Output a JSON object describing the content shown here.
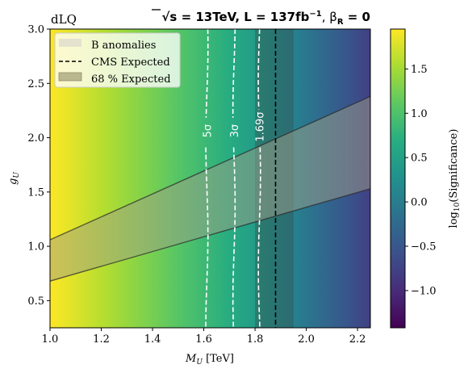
{
  "chart_data": {
    "type": "heatmap",
    "corner_label": "dLQ",
    "title": {
      "sqrt_s_prefix": "√",
      "sqrt_s_var": "s",
      "energy": " = 13TeV, L = 137fb",
      "lumi_exp": "−1",
      "sep": ", β",
      "beta_sub": "R",
      "beta_val": " = 0"
    },
    "xlabel": {
      "var": "M",
      "sub": "U",
      "unit": " [TeV]"
    },
    "ylabel": {
      "var": "g",
      "sub": "U"
    },
    "xlim": [
      1.0,
      2.25
    ],
    "ylim": [
      0.25,
      3.0
    ],
    "xticks": [
      1.0,
      1.2,
      1.4,
      1.6,
      1.8,
      2.0,
      2.2
    ],
    "xtick_labels": [
      "1.0",
      "1.2",
      "1.4",
      "1.6",
      "1.8",
      "2.0",
      "2.2"
    ],
    "yticks": [
      0.5,
      1.0,
      1.5,
      2.0,
      2.5,
      3.0
    ],
    "ytick_labels": [
      "0.5",
      "1.0",
      "1.5",
      "2.0",
      "2.5",
      "3.0"
    ],
    "colorbar": {
      "label_prefix": "log",
      "label_sub": "10",
      "label_suffix": "(Significance)",
      "range": [
        -1.42,
        1.95
      ],
      "ticks": [
        -1.0,
        -0.5,
        0.0,
        0.5,
        1.0,
        1.5
      ],
      "tick_labels": [
        "−1.0",
        "−0.5",
        "0.0",
        "0.5",
        "1.0",
        "1.5"
      ],
      "colormap": "viridis"
    },
    "heatmap_profile": {
      "x": [
        1.0,
        1.1,
        1.2,
        1.3,
        1.4,
        1.5,
        1.6,
        1.7,
        1.8,
        1.9,
        2.0,
        2.1,
        2.2,
        2.25
      ],
      "log10_significance": [
        1.95,
        1.78,
        1.6,
        1.42,
        1.25,
        1.06,
        0.87,
        0.67,
        0.44,
        0.2,
        -0.07,
        -0.35,
        -0.63,
        -0.78
      ]
    },
    "sigma_contours": [
      {
        "label": "5σ",
        "x": 1.612
      },
      {
        "label": "3σ",
        "x": 1.718
      },
      {
        "label": "1.69σ",
        "x": 1.817
      }
    ],
    "cms_expected_x": 1.88,
    "expected_band_68": [
      1.8,
      1.95
    ],
    "b_anomalies_band": {
      "x": [
        1.0,
        2.25
      ],
      "upper": [
        1.06,
        2.38
      ],
      "lower": [
        0.68,
        1.53
      ]
    },
    "legend": {
      "position": "upper-left",
      "entries": [
        {
          "label": "B anomalies",
          "style": "band-light"
        },
        {
          "label": "CMS Expected",
          "style": "dashed-line"
        },
        {
          "label": "68 % Expected",
          "style": "band-dark"
        }
      ]
    },
    "colors": {
      "b_anomaly_band": "#a09d88",
      "expected_band": "#3a3a3a",
      "contour": "#ffffff",
      "cms_line": "#000000"
    }
  }
}
